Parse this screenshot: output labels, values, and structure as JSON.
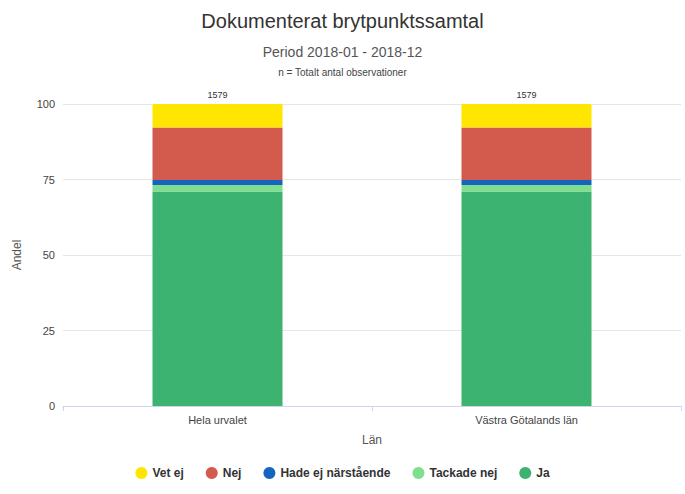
{
  "chart_data": {
    "type": "bar",
    "title": "Dokumenterat brytpunktssamtal",
    "subtitle": "Period 2018-01 - 2018-12",
    "note": "n = Totalt antal observationer",
    "x_label": "Län",
    "y_label": "Andel",
    "categories": [
      "Hela urvalet",
      "Västra Götalands län"
    ],
    "n_values": [
      1579,
      1579
    ],
    "series": [
      {
        "name": "Vet ej",
        "color": "#ffe600",
        "values": [
          7.8,
          7.8
        ]
      },
      {
        "name": "Nej",
        "color": "#d35b4e",
        "values": [
          17.4,
          17.4
        ]
      },
      {
        "name": "Hade ej närstående",
        "color": "#1565c0",
        "values": [
          1.6,
          1.6
        ]
      },
      {
        "name": "Tackade nej",
        "color": "#7ee08e",
        "values": [
          2.2,
          2.2
        ]
      },
      {
        "name": "Ja",
        "color": "#3cb371",
        "values": [
          71,
          71
        ]
      }
    ],
    "stacked": true,
    "ylim": [
      0,
      100
    ],
    "yticks": [
      0,
      25,
      50,
      75,
      100
    ],
    "grid": true,
    "legend": "bottom"
  }
}
